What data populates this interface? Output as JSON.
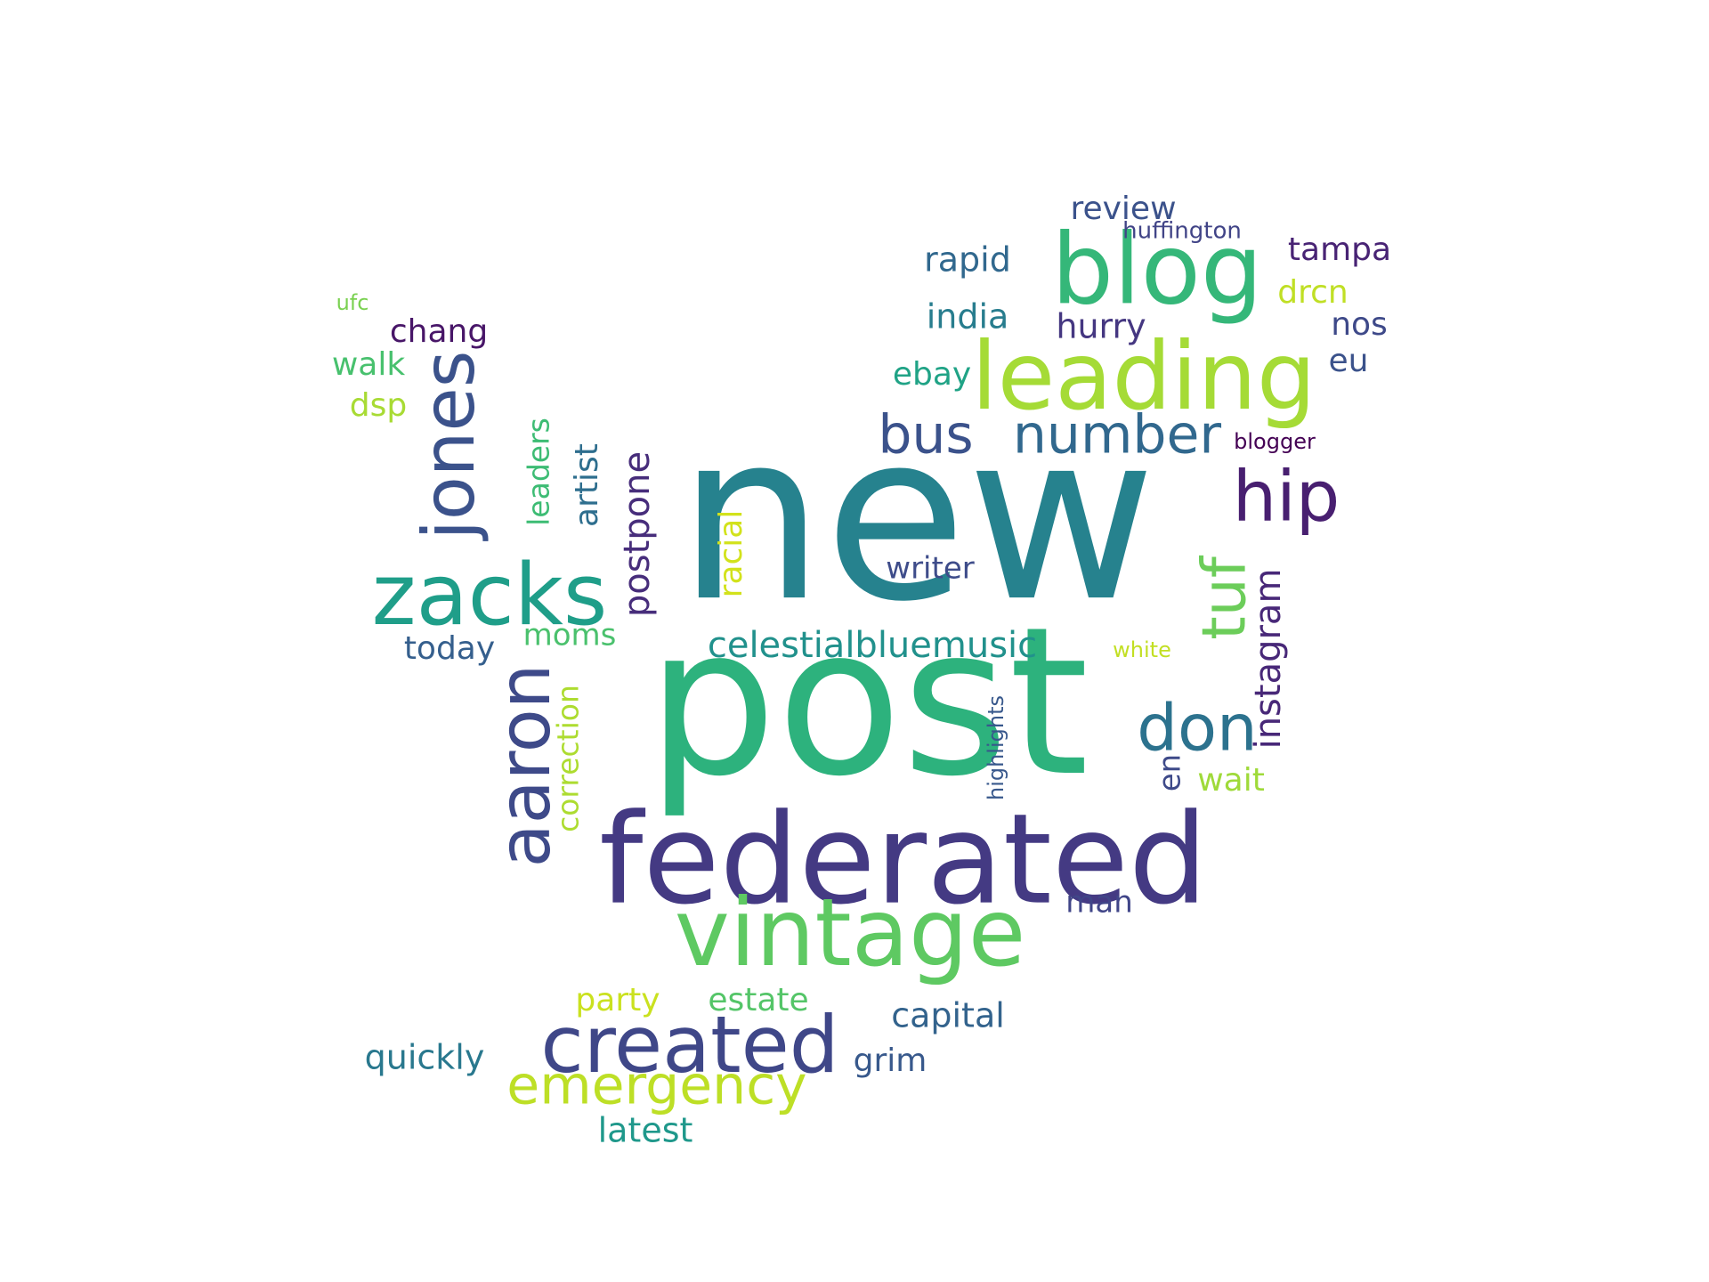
{
  "words": [
    {
      "text": "new",
      "color": "#26828e"
    },
    {
      "text": "post",
      "color": "#2db27d"
    },
    {
      "text": "federated",
      "color": "#443a83"
    },
    {
      "text": "blog",
      "color": "#35b779"
    },
    {
      "text": "leading",
      "color": "#a5db36"
    },
    {
      "text": "vintage",
      "color": "#5ec962"
    },
    {
      "text": "zacks",
      "color": "#1f9e89"
    },
    {
      "text": "created",
      "color": "#3f4788"
    },
    {
      "text": "jones",
      "color": "#3b528b"
    },
    {
      "text": "aaron",
      "color": "#3e4a89"
    },
    {
      "text": "hip",
      "color": "#481f70"
    },
    {
      "text": "bus",
      "color": "#3b528b"
    },
    {
      "text": "number",
      "color": "#31688e"
    },
    {
      "text": "don",
      "color": "#2c728e"
    },
    {
      "text": "tuf",
      "color": "#6ccd5a"
    },
    {
      "text": "emergency",
      "color": "#bddf26"
    },
    {
      "text": "instagram",
      "color": "#482878"
    },
    {
      "text": "celestialbluemusic",
      "color": "#21918c"
    },
    {
      "text": "postpone",
      "color": "#472d7b"
    },
    {
      "text": "artist",
      "color": "#2e6e8e"
    },
    {
      "text": "leaders",
      "color": "#3dbc74"
    },
    {
      "text": "racial",
      "color": "#d2e21b"
    },
    {
      "text": "correction",
      "color": "#addc30"
    },
    {
      "text": "moms",
      "color": "#4ac16d"
    },
    {
      "text": "today",
      "color": "#355f8d"
    },
    {
      "text": "writer",
      "color": "#3e4c8a"
    },
    {
      "text": "review",
      "color": "#3b528b"
    },
    {
      "text": "huffington",
      "color": "#414487"
    },
    {
      "text": "rapid",
      "color": "#31688e"
    },
    {
      "text": "tampa",
      "color": "#482374"
    },
    {
      "text": "drcn",
      "color": "#c0df25"
    },
    {
      "text": "india",
      "color": "#287d8e"
    },
    {
      "text": "hurry",
      "color": "#453781"
    },
    {
      "text": "nos",
      "color": "#3e4989"
    },
    {
      "text": "eu",
      "color": "#3b528b"
    },
    {
      "text": "ebay",
      "color": "#20a386"
    },
    {
      "text": "blogger",
      "color": "#440154"
    },
    {
      "text": "chang",
      "color": "#481668"
    },
    {
      "text": "walk",
      "color": "#48c16e"
    },
    {
      "text": "dsp",
      "color": "#a8db34"
    },
    {
      "text": "ufc",
      "color": "#7ad151"
    },
    {
      "text": "white",
      "color": "#c2df23"
    },
    {
      "text": "highlights",
      "color": "#38588c"
    },
    {
      "text": "en",
      "color": "#3e4a89"
    },
    {
      "text": "wait",
      "color": "#9fda3a"
    },
    {
      "text": "man",
      "color": "#404588"
    },
    {
      "text": "party",
      "color": "#cae11f"
    },
    {
      "text": "estate",
      "color": "#54c568"
    },
    {
      "text": "capital",
      "color": "#33638d"
    },
    {
      "text": "quickly",
      "color": "#29788e"
    },
    {
      "text": "grim",
      "color": "#38598c"
    },
    {
      "text": "latest",
      "color": "#1f988b"
    }
  ]
}
